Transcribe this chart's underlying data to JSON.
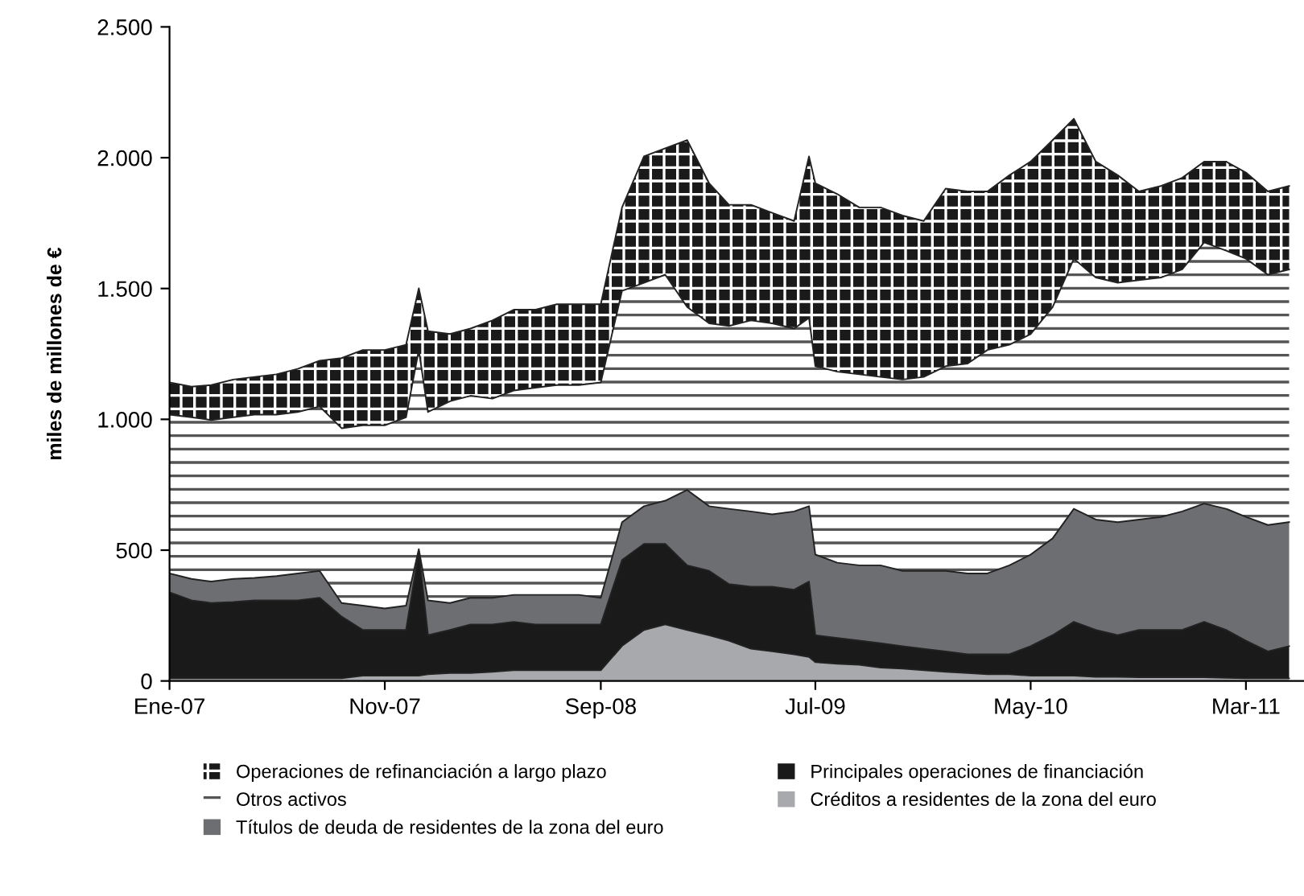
{
  "chart_data": {
    "type": "area",
    "stacked": true,
    "ylabel": "miles de millones de €",
    "x": [
      "2007-01-01",
      "2007-02-01",
      "2007-03-01",
      "2007-04-01",
      "2007-05-01",
      "2007-06-01",
      "2007-07-01",
      "2007-08-01",
      "2007-09-01",
      "2007-10-01",
      "2007-11-01",
      "2007-12-01",
      "2007-12-19",
      "2008-01-01",
      "2008-02-01",
      "2008-03-01",
      "2008-04-01",
      "2008-05-01",
      "2008-06-01",
      "2008-07-01",
      "2008-08-01",
      "2008-09-01",
      "2008-10-01",
      "2008-11-01",
      "2008-12-01",
      "2009-01-01",
      "2009-02-01",
      "2009-03-01",
      "2009-04-01",
      "2009-05-01",
      "2009-06-01",
      "2009-06-22",
      "2009-07-01",
      "2009-08-01",
      "2009-09-01",
      "2009-10-01",
      "2009-11-01",
      "2009-12-01",
      "2010-01-01",
      "2010-02-01",
      "2010-03-01",
      "2010-04-01",
      "2010-05-01",
      "2010-06-01",
      "2010-07-01",
      "2010-08-01",
      "2010-09-01",
      "2010-10-01",
      "2010-11-01",
      "2010-12-01",
      "2011-01-01",
      "2011-02-01",
      "2011-03-01",
      "2011-04-01",
      "2011-05-01"
    ],
    "series": [
      {
        "name": "Créditos a residentes de la zona del euro",
        "color": "#a7a9ac",
        "values": [
          10,
          10,
          10,
          10,
          10,
          10,
          10,
          10,
          10,
          20,
          20,
          20,
          20,
          26,
          30,
          30,
          35,
          41,
          41,
          41,
          41,
          41,
          134,
          195,
          216,
          195,
          175,
          154,
          123,
          113,
          102,
          92,
          72,
          66,
          62,
          51,
          47,
          41,
          35,
          30,
          26,
          26,
          20,
          20,
          20,
          16,
          16,
          14,
          14,
          14,
          14,
          12,
          10,
          10,
          10
        ]
      },
      {
        "name": "Principales operaciones de financiación",
        "color": "#1a1a1a",
        "values": [
          329,
          298,
          288,
          292,
          298,
          298,
          298,
          308,
          236,
          175,
          175,
          175,
          473,
          149,
          165,
          186,
          181,
          185,
          175,
          175,
          175,
          175,
          328,
          329,
          308,
          247,
          246,
          216,
          237,
          247,
          247,
          288,
          103,
          98,
          92,
          93,
          86,
          82,
          78,
          72,
          76,
          76,
          113,
          155,
          206,
          179,
          159,
          181,
          181,
          181,
          212,
          183,
          144,
          103,
          123
        ]
      },
      {
        "name": "Títulos de deuda de residentes de la zona del euro",
        "color": "#6d6e71",
        "values": [
          72,
          82,
          82,
          88,
          86,
          93,
          103,
          103,
          52,
          93,
          82,
          93,
          11,
          133,
          103,
          102,
          102,
          103,
          113,
          113,
          113,
          102,
          145,
          144,
          165,
          288,
          247,
          288,
          288,
          277,
          299,
          288,
          308,
          288,
          288,
          298,
          288,
          298,
          308,
          309,
          309,
          340,
          350,
          370,
          432,
          422,
          432,
          422,
          432,
          453,
          452,
          463,
          473,
          483,
          474
        ]
      },
      {
        "name": "Otros activos",
        "color": "#ffffff",
        "values": [
          607,
          618,
          617,
          618,
          624,
          617,
          617,
          628,
          668,
          689,
          700,
          720,
          761,
          720,
          771,
          772,
          761,
          781,
          792,
          802,
          802,
          823,
          884,
          854,
          864,
          699,
          699,
          699,
          730,
          730,
          699,
          720,
          720,
          730,
          730,
          720,
          731,
          741,
          782,
          802,
          854,
          843,
          843,
          884,
          956,
          925,
          915,
          915,
          915,
          925,
          998,
          987,
          987,
          957,
          966
        ]
      },
      {
        "name": "Operaciones de refinanciación a largo plazo",
        "color": "#1a1a1a",
        "values": [
          123,
          117,
          134,
          144,
          144,
          154,
          165,
          175,
          268,
          288,
          288,
          277,
          236,
          309,
          257,
          257,
          299,
          309,
          298,
          309,
          309,
          299,
          319,
          483,
          483,
          638,
          535,
          463,
          442,
          422,
          411,
          617,
          699,
          679,
          638,
          648,
          627,
          596,
          679,
          658,
          606,
          648,
          659,
          638,
          535,
          443,
          411,
          339,
          350,
          350,
          309,
          340,
          329,
          318,
          319
        ]
      }
    ],
    "xlim": [
      "2007-01-01",
      "2011-05-22"
    ],
    "xticks": [
      {
        "value": "2007-01-01",
        "label": "Ene-07"
      },
      {
        "value": "2007-11-01",
        "label": "Nov-07"
      },
      {
        "value": "2008-09-01",
        "label": "Sep-08"
      },
      {
        "value": "2009-07-01",
        "label": "Jul-09"
      },
      {
        "value": "2010-05-01",
        "label": "May-10"
      },
      {
        "value": "2011-03-01",
        "label": "Mar-11"
      }
    ],
    "ylim": [
      0,
      2500
    ],
    "yticks": [
      0,
      500,
      {
        "value": 1000,
        "label": "1.000"
      },
      {
        "value": 1500,
        "label": "1.500"
      },
      {
        "value": 2000,
        "label": "2.000"
      },
      {
        "value": 2500,
        "label": "2.500"
      }
    ],
    "legend": "bottom",
    "grid": false
  }
}
